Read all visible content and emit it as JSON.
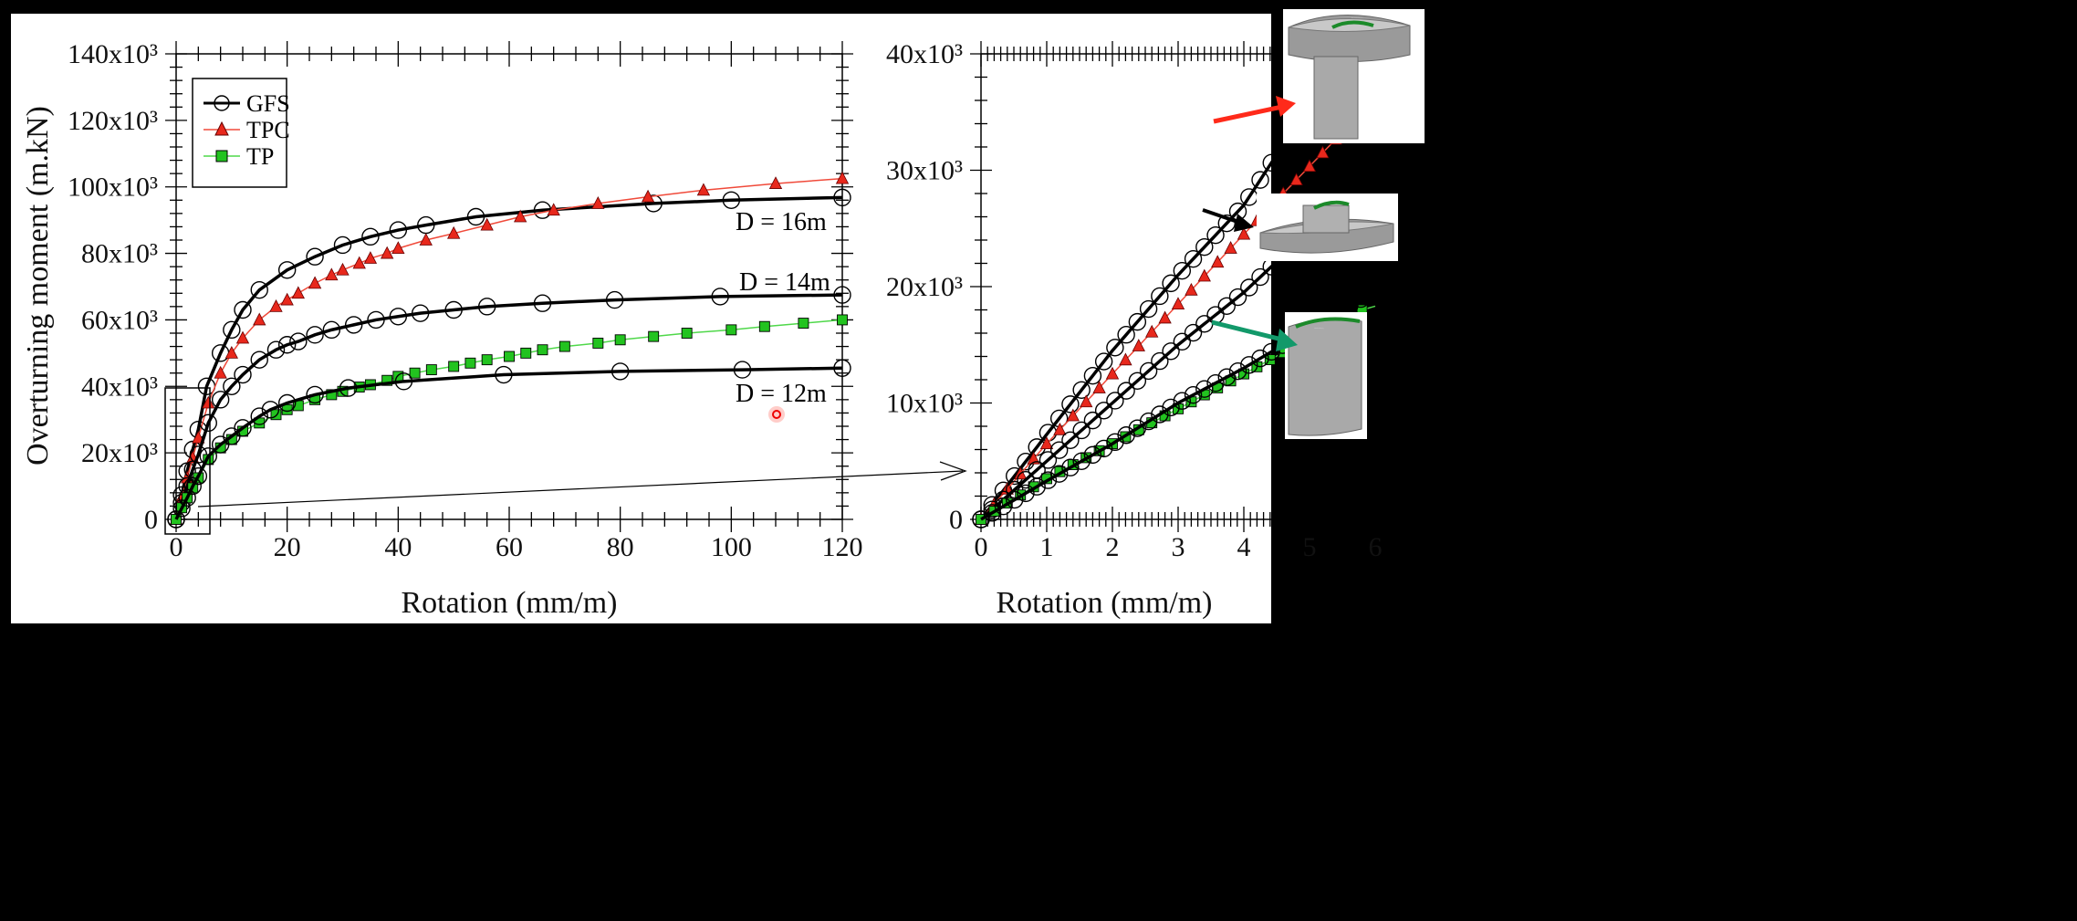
{
  "colors": {
    "GFS": "#000000",
    "TPC": "#e8281c",
    "TP": "#22c31f",
    "TPC_line": "#f04a3a",
    "TP_line": "#4fd84a",
    "arrow_red": "#ff2a1a",
    "arrow_green": "#12996a"
  },
  "chart_data": [
    {
      "type": "line",
      "xlabel": "Rotation (mm/m)",
      "ylabel": "Overturning moment (m.kN)",
      "xlim": [
        0,
        120
      ],
      "ylim": [
        0,
        140000
      ],
      "x_ticks": [
        "0",
        "20",
        "40",
        "60",
        "80",
        "100",
        "120"
      ],
      "y_ticks": [
        "0",
        "20x10³",
        "40x10³",
        "60x10³",
        "80x10³",
        "100x10³",
        "120x10³",
        "140x10³"
      ],
      "grid": false,
      "legend": {
        "position": "top-left",
        "entries": [
          "GFS",
          "TPC",
          "TP"
        ]
      },
      "annotations": [
        "D = 16m",
        "D = 14m",
        "D = 12m"
      ],
      "series": [
        {
          "name": "GFS",
          "label": "D = 16m",
          "marker": "circle",
          "x": [
            0,
            1,
            2,
            3,
            4,
            5.5,
            8,
            10,
            12,
            15,
            20,
            25,
            30,
            35,
            40,
            45,
            54,
            66,
            86,
            100,
            120
          ],
          "y": [
            0,
            7300,
            14500,
            21000,
            27000,
            40000,
            50000,
            57000,
            63000,
            69000,
            75000,
            79000,
            82500,
            85000,
            87000,
            88500,
            91000,
            93000,
            95000,
            96000,
            96800
          ]
        },
        {
          "name": "TPC",
          "label": "D = 16m",
          "marker": "triangle",
          "x": [
            0,
            1,
            2,
            3,
            4,
            5.8,
            8,
            10,
            12,
            15,
            18,
            20,
            22,
            25,
            28,
            30,
            33,
            35,
            38,
            40,
            45,
            50,
            56,
            62,
            68,
            76,
            85,
            95,
            108,
            120
          ],
          "y": [
            0,
            6500,
            12500,
            18500,
            24500,
            35000,
            44000,
            50000,
            54500,
            60000,
            64000,
            66000,
            68000,
            71000,
            73500,
            75000,
            77000,
            78500,
            80000,
            81500,
            84000,
            86000,
            88500,
            91000,
            93000,
            95000,
            97000,
            99000,
            101000,
            102500
          ]
        },
        {
          "name": "GFS",
          "label": "D = 14m",
          "marker": "circle",
          "x": [
            0,
            1,
            2,
            3,
            4,
            5.8,
            8,
            10,
            12,
            15,
            18,
            20,
            22,
            25,
            28,
            32,
            36,
            40,
            44,
            50,
            56,
            66,
            79,
            98,
            120
          ],
          "y": [
            0,
            5000,
            10000,
            15000,
            19500,
            29000,
            36000,
            40000,
            43500,
            48000,
            51000,
            52500,
            53500,
            55500,
            57000,
            58500,
            60000,
            61000,
            62000,
            63000,
            64000,
            65000,
            66000,
            67000,
            67500
          ]
        },
        {
          "name": "TP",
          "label": "D = 12m",
          "marker": "square",
          "x": [
            0,
            1,
            2,
            3,
            4,
            5.8,
            8,
            10,
            12,
            15,
            18,
            20,
            22,
            25,
            28,
            30,
            33,
            35,
            38,
            40,
            43,
            46,
            50,
            53,
            56,
            60,
            63,
            66,
            70,
            76,
            80,
            86,
            92,
            100,
            106,
            113,
            120
          ],
          "y": [
            0,
            3500,
            6500,
            9500,
            12500,
            18000,
            21500,
            24000,
            26500,
            29000,
            31500,
            33000,
            34200,
            36000,
            37500,
            38500,
            39800,
            40500,
            41800,
            43000,
            44000,
            45000,
            46000,
            47000,
            48000,
            49000,
            50000,
            51000,
            52000,
            53000,
            54000,
            55000,
            56000,
            57000,
            58000,
            59000,
            60000
          ]
        },
        {
          "name": "GFS",
          "label": "D = 12m",
          "marker": "circle",
          "x": [
            0,
            1,
            2,
            3,
            4,
            5.8,
            8,
            10,
            12,
            15,
            17,
            20,
            25,
            31,
            41,
            59,
            80,
            102,
            120
          ],
          "y": [
            0,
            3300,
            6500,
            10000,
            13000,
            19000,
            22500,
            25000,
            27500,
            31000,
            33000,
            35000,
            37500,
            39500,
            41500,
            43500,
            44500,
            45000,
            45500
          ]
        }
      ]
    },
    {
      "type": "line",
      "xlabel": "Rotation (mm/m)",
      "xlim": [
        0,
        6
      ],
      "ylim": [
        0,
        40000
      ],
      "x_ticks": [
        "0",
        "1",
        "2",
        "3",
        "4",
        "5",
        "6"
      ],
      "y_ticks": [
        "0",
        "10x10³",
        "20x10³",
        "30x10³",
        "40x10³"
      ],
      "grid": false,
      "note": "zoomed view of the initial part of the left chart (same series)"
    }
  ],
  "images": [
    "T-shaped foundation mesh (TPC)",
    "disc footing with pile mesh (GFS)",
    "cylindrical pile mesh (TP)"
  ]
}
